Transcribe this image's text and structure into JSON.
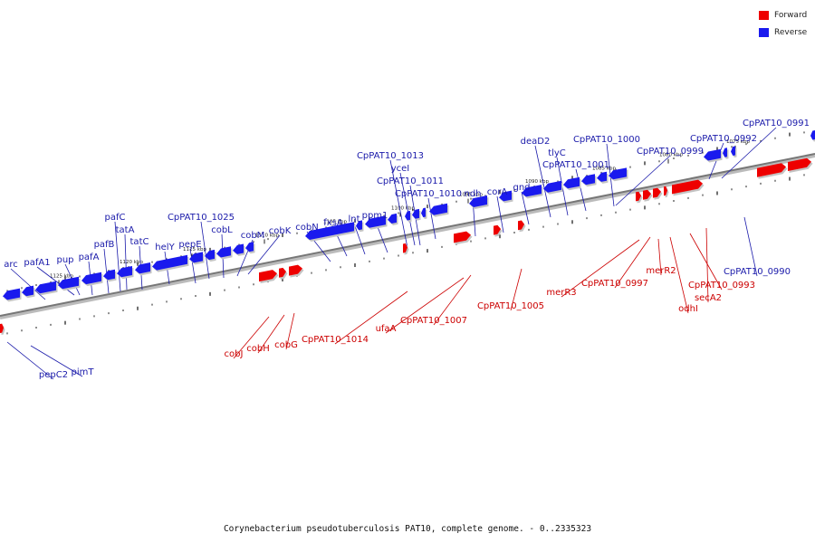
{
  "colors": {
    "forward": "#ee0000",
    "reverse": "#1a1aee",
    "forward_label": "#cc0000",
    "reverse_label": "#1a1aaa",
    "backbone": "#777777"
  },
  "legend": {
    "forward": "Forward",
    "reverse": "Reverse"
  },
  "caption": "Corynebacterium pseudotuberculosis PAT10, complete genome. - 0..2335323",
  "scale_labels": [
    "1125 kbp",
    "1120 kbp",
    "1115 kbp",
    "1110 kbp",
    "1105 kbp",
    "1100 kbp",
    "1095 kbp",
    "1090 kbp",
    "1085 kbp",
    "1080 kbp",
    "1075 kbp"
  ],
  "reverse_genes": [
    "arc",
    "pafA1",
    "pup",
    "pafA",
    "pafB",
    "pafC",
    "tatA",
    "tatC",
    "helY",
    "pepE",
    "CpPAT10_1025",
    "cobL",
    "cobM",
    "cobK",
    "cobN",
    "fxsA",
    "lnt",
    "ppm1",
    "CpPAT10_1013",
    "yceI",
    "CpPAT10_1011",
    "CpPAT10_1010",
    "ndh",
    "corA",
    "gnd",
    "deaD2",
    "tlyC",
    "CpPAT10_1001",
    "CpPAT10_1000",
    "CpPAT10_0999",
    "CpPAT10_0992",
    "CpPAT10_0991",
    "CpPAT10_0990",
    "pepC2",
    "pimT"
  ],
  "forward_genes": [
    "cobJ",
    "cobH",
    "cobG",
    "CpPAT10_1014",
    "ufaA",
    "CpPAT10_1007",
    "CpPAT10_1005",
    "merR3",
    "CpPAT10_0997",
    "merR2",
    "odhI",
    "CpPAT10_0993",
    "secA2"
  ]
}
